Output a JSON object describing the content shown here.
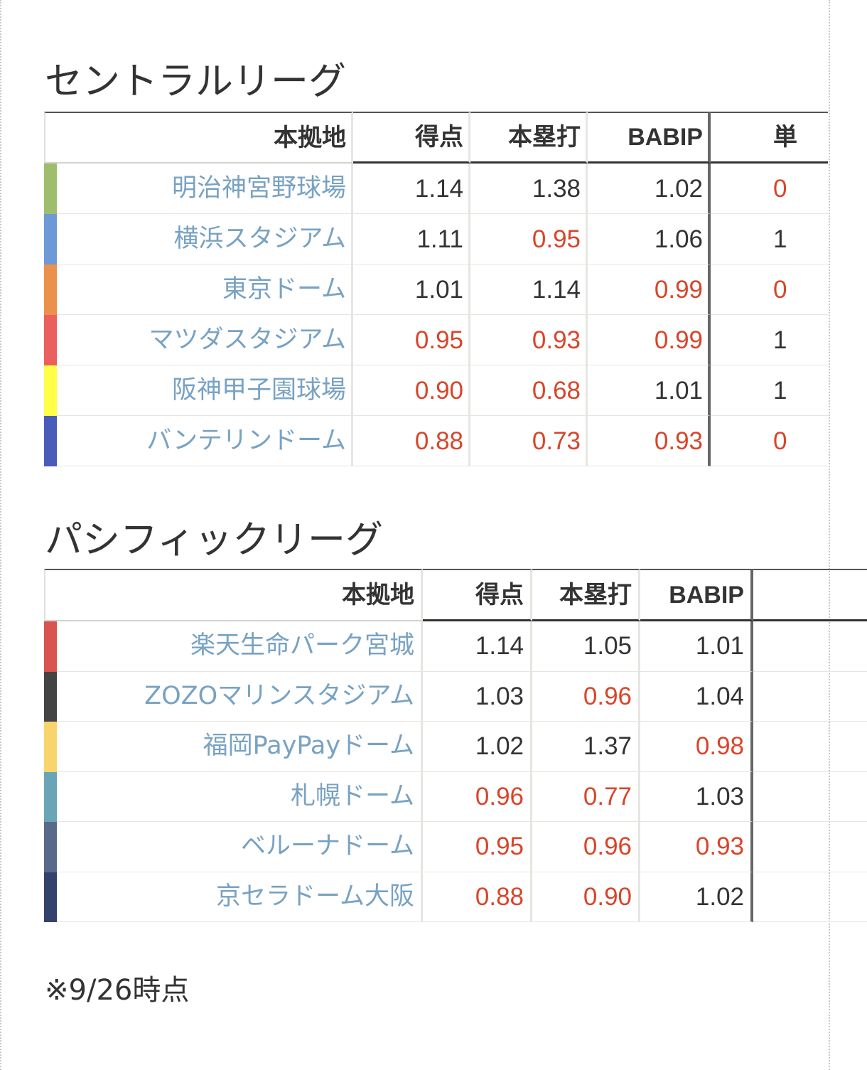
{
  "central": {
    "title": "セントラルリーグ",
    "headers": {
      "stadium": "本拠地",
      "runs": "得点",
      "hr": "本塁打",
      "babip": "BABIP",
      "extra": "単"
    },
    "rows": [
      {
        "stadium": "明治神宮野球場",
        "color": "#9fbe6d",
        "runs": "1.14",
        "hr": "1.38",
        "babip": "1.02",
        "extra": "0"
      },
      {
        "stadium": "横浜スタジアム",
        "color": "#6d9ad6",
        "runs": "1.11",
        "hr": "0.95",
        "babip": "1.06",
        "extra": "1"
      },
      {
        "stadium": "東京ドーム",
        "color": "#ec914b",
        "runs": "1.01",
        "hr": "1.14",
        "babip": "0.99",
        "extra": "0"
      },
      {
        "stadium": "マツダスタジアム",
        "color": "#eb5f5e",
        "runs": "0.95",
        "hr": "0.93",
        "babip": "0.99",
        "extra": "1"
      },
      {
        "stadium": "阪神甲子園球場",
        "color": "#ffff46",
        "runs": "0.90",
        "hr": "0.68",
        "babip": "1.01",
        "extra": "1"
      },
      {
        "stadium": "バンテリンドーム",
        "color": "#4a5cba",
        "runs": "0.88",
        "hr": "0.73",
        "babip": "0.93",
        "extra": "0"
      }
    ]
  },
  "pacific": {
    "title": "パシフィックリーグ",
    "headers": {
      "stadium": "本拠地",
      "runs": "得点",
      "hr": "本塁打",
      "babip": "BABIP"
    },
    "rows": [
      {
        "stadium": "楽天生命パーク宮城",
        "color": "#d9534f",
        "runs": "1.14",
        "hr": "1.05",
        "babip": "1.01"
      },
      {
        "stadium": "ZOZOマリンスタジアム",
        "color": "#444444",
        "runs": "1.03",
        "hr": "0.96",
        "babip": "1.04"
      },
      {
        "stadium": "福岡PayPayドーム",
        "color": "#f7d46c",
        "runs": "1.02",
        "hr": "1.37",
        "babip": "0.98"
      },
      {
        "stadium": "札幌ドーム",
        "color": "#6aa4b7",
        "runs": "0.96",
        "hr": "0.77",
        "babip": "1.03"
      },
      {
        "stadium": "ベルーナドーム",
        "color": "#59698a",
        "runs": "0.95",
        "hr": "0.96",
        "babip": "0.93"
      },
      {
        "stadium": "京セラドーム大阪",
        "color": "#33416d",
        "runs": "0.88",
        "hr": "0.90",
        "babip": "1.02"
      }
    ]
  },
  "footnote": "※9/26時点",
  "colors": {
    "text": "#333333",
    "link": "#78a2c3",
    "low_value": "#d8452a"
  }
}
